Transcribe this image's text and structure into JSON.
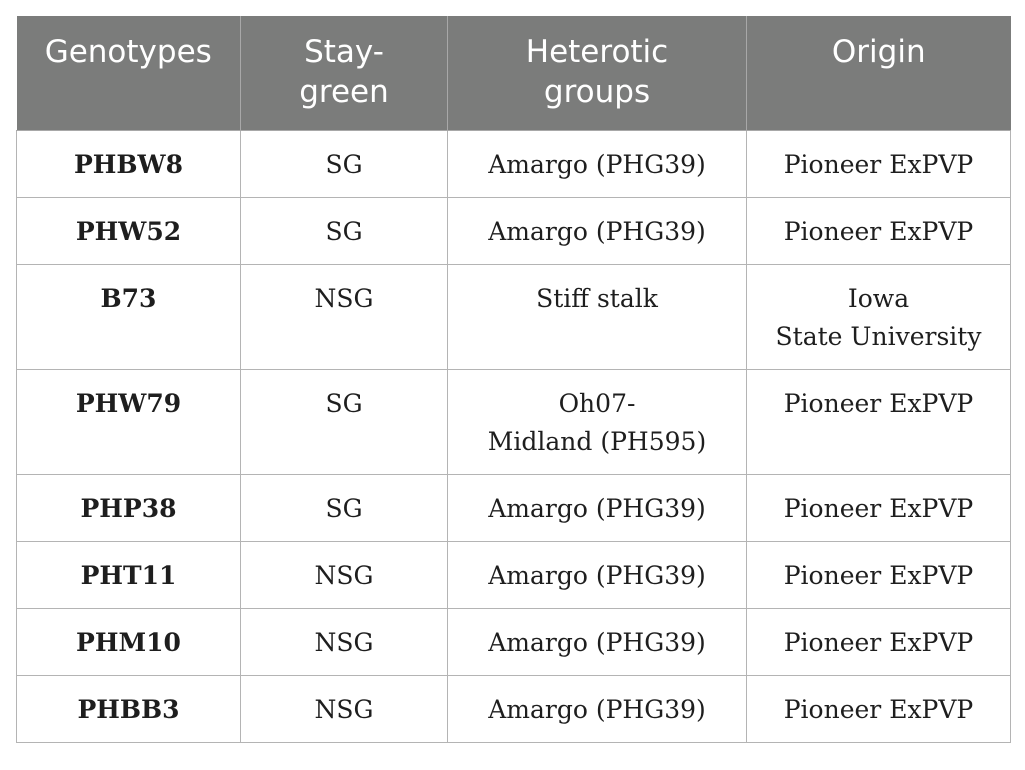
{
  "table": {
    "headers": [
      {
        "lines": [
          "Genotypes"
        ]
      },
      {
        "lines": [
          "Stay-",
          "green"
        ]
      },
      {
        "lines": [
          "Heterotic",
          "groups"
        ]
      },
      {
        "lines": [
          "Origin"
        ]
      }
    ],
    "rows": [
      {
        "genotype": "PHBW8",
        "stay_green": "SG",
        "heterotic": [
          "Amargo (PHG39)"
        ],
        "origin": [
          "Pioneer ExPVP"
        ]
      },
      {
        "genotype": "PHW52",
        "stay_green": "SG",
        "heterotic": [
          "Amargo (PHG39)"
        ],
        "origin": [
          "Pioneer ExPVP"
        ]
      },
      {
        "genotype": "B73",
        "stay_green": "NSG",
        "heterotic": [
          "Stiff stalk"
        ],
        "origin": [
          "Iowa",
          "State University"
        ]
      },
      {
        "genotype": "PHW79",
        "stay_green": "SG",
        "heterotic": [
          "Oh07-",
          "Midland (PH595)"
        ],
        "origin": [
          "Pioneer ExPVP"
        ]
      },
      {
        "genotype": "PHP38",
        "stay_green": "SG",
        "heterotic": [
          "Amargo (PHG39)"
        ],
        "origin": [
          "Pioneer ExPVP"
        ]
      },
      {
        "genotype": "PHT11",
        "stay_green": "NSG",
        "heterotic": [
          "Amargo (PHG39)"
        ],
        "origin": [
          "Pioneer ExPVP"
        ]
      },
      {
        "genotype": "PHM10",
        "stay_green": "NSG",
        "heterotic": [
          "Amargo (PHG39)"
        ],
        "origin": [
          "Pioneer ExPVP"
        ]
      },
      {
        "genotype": "PHBB3",
        "stay_green": "NSG",
        "heterotic": [
          "Amargo (PHG39)"
        ],
        "origin": [
          "Pioneer ExPVP"
        ]
      }
    ]
  },
  "colors": {
    "header_background": "#7b7c7b",
    "header_text": "#ffffff",
    "body_text": "#1e1e1e",
    "grid_lines": "#b4b4b4"
  }
}
